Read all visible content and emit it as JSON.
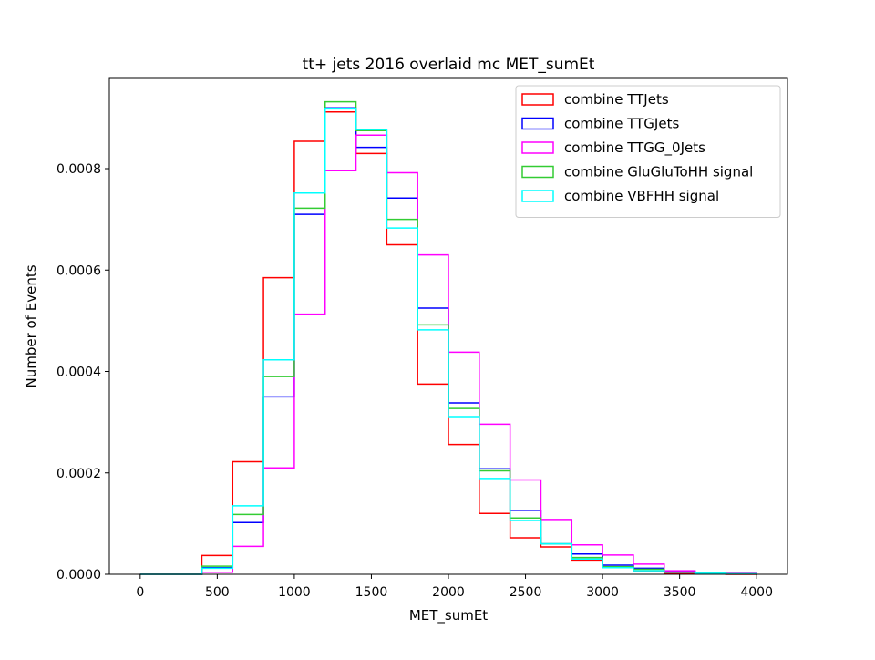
{
  "chart_data": {
    "type": "step-histogram",
    "title": "tt+ jets 2016 overlaid mc MET_sumEt",
    "xlabel": "MET_sumEt",
    "ylabel": "Number of Events",
    "xlim": [
      -200,
      4200
    ],
    "ylim": [
      0,
      0.000978
    ],
    "xticks": [
      0,
      500,
      1000,
      1500,
      2000,
      2500,
      3000,
      3500,
      4000
    ],
    "xtick_labels": [
      "0",
      "500",
      "1000",
      "1500",
      "2000",
      "2500",
      "3000",
      "3500",
      "4000"
    ],
    "yticks": [
      0,
      0.0002,
      0.0004,
      0.0006,
      0.0008
    ],
    "ytick_labels": [
      "0.0000",
      "0.0002",
      "0.0004",
      "0.0006",
      "0.0008"
    ],
    "bin_edges": [
      0,
      200,
      400,
      600,
      800,
      1000,
      1200,
      1400,
      1600,
      1800,
      2000,
      2200,
      2400,
      2600,
      2800,
      3000,
      3200,
      3400,
      3600,
      3800,
      4000
    ],
    "legend_position": "top-right",
    "series": [
      {
        "name": "combine TTJets",
        "color": "#ff0000",
        "values": [
          0,
          0,
          3.7e-05,
          0.000222,
          0.000585,
          0.000854,
          0.000912,
          0.00083,
          0.00065,
          0.000375,
          0.000256,
          0.00012,
          7.2e-05,
          5.4e-05,
          2.8e-05,
          1.4e-05,
          5e-06,
          2e-06,
          1e-06,
          0
        ]
      },
      {
        "name": "combine TTGJets",
        "color": "#0000ff",
        "values": [
          0,
          0,
          1.3e-05,
          0.000102,
          0.00035,
          0.00071,
          0.00092,
          0.000842,
          0.000742,
          0.000525,
          0.000338,
          0.000208,
          0.000126,
          6e-05,
          4e-05,
          1.8e-05,
          1.2e-05,
          6e-06,
          3e-06,
          1e-06
        ]
      },
      {
        "name": "combine TTGG_0Jets",
        "color": "#ff00ff",
        "values": [
          0,
          0,
          4e-06,
          5.5e-05,
          0.00021,
          0.000513,
          0.000796,
          0.000866,
          0.000792,
          0.00063,
          0.000438,
          0.000296,
          0.000186,
          0.000108,
          5.8e-05,
          3.8e-05,
          2e-05,
          7e-06,
          4e-06,
          2e-06
        ]
      },
      {
        "name": "combine GluGluToHH signal",
        "color": "#33cc33",
        "values": [
          0,
          0,
          1.6e-05,
          0.000118,
          0.00039,
          0.000722,
          0.000932,
          0.000875,
          0.0007,
          0.000492,
          0.000327,
          0.000204,
          0.000111,
          6e-05,
          3.3e-05,
          1.5e-05,
          1e-05,
          4e-06,
          2e-06,
          1e-06
        ]
      },
      {
        "name": "combine VBFHH signal",
        "color": "#00ffff",
        "values": [
          0,
          0,
          1.2e-05,
          0.000135,
          0.000423,
          0.000752,
          0.000918,
          0.000877,
          0.000683,
          0.000482,
          0.000311,
          0.000189,
          0.000106,
          6e-05,
          3e-05,
          1.3e-05,
          7e-06,
          4e-06,
          2e-06,
          1e-06
        ]
      }
    ]
  }
}
